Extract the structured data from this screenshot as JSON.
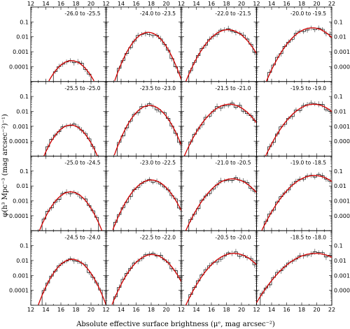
{
  "chart_data": {
    "type": "grid",
    "panel_type": "histogram-with-fit",
    "xlabel": "Absolute effective surface brightness (μᵉ, mag arcsec⁻²)",
    "ylabel": "φ(h³ Mpc⁻³ (mag arcsec⁻²)⁻¹)",
    "xlim": [
      12,
      22
    ],
    "x_ticks": [
      12,
      14,
      16,
      18,
      20,
      22
    ],
    "x_tick_labels": [
      "12",
      "14",
      "16",
      "18",
      "20",
      "22"
    ],
    "y_scale": "log",
    "ylim": [
      1e-05,
      1
    ],
    "y_ticks": [
      0.1,
      0.01,
      0.001,
      0.0001
    ],
    "y_tick_labels": [
      "0.1",
      "0.01",
      "0.001",
      "0.0001"
    ],
    "fit_color": "#d40000",
    "histogram_color": "#000000",
    "panels": [
      {
        "label": "-26.0 to -25.5",
        "fit_mu": 17.4,
        "fit_sigma": 1.2,
        "fit_peak": 0.00025
      },
      {
        "label": "-24.0 to -23.5",
        "fit_mu": 17.6,
        "fit_sigma": 1.15,
        "fit_peak": 0.02
      },
      {
        "label": "-22.0 to -21.5",
        "fit_mu": 18.2,
        "fit_sigma": 1.4,
        "fit_peak": 0.03
      },
      {
        "label": "-20.0 to -19.5",
        "fit_mu": 19.4,
        "fit_sigma": 1.5,
        "fit_peak": 0.04
      },
      {
        "label": "-25.5 to -25.0",
        "fit_mu": 17.3,
        "fit_sigma": 1.15,
        "fit_peak": 0.0012
      },
      {
        "label": "-23.5 to -23.0",
        "fit_mu": 17.8,
        "fit_sigma": 1.2,
        "fit_peak": 0.025
      },
      {
        "label": "-21.5 to -21.0",
        "fit_mu": 18.4,
        "fit_sigma": 1.5,
        "fit_peak": 0.03
      },
      {
        "label": "-19.5 to -19.0",
        "fit_mu": 19.6,
        "fit_sigma": 1.6,
        "fit_peak": 0.03
      },
      {
        "label": "-25.0 to -24.5",
        "fit_mu": 17.3,
        "fit_sigma": 1.2,
        "fit_peak": 0.004
      },
      {
        "label": "-23.0 to -22.5",
        "fit_mu": 18.0,
        "fit_sigma": 1.3,
        "fit_peak": 0.025
      },
      {
        "label": "-21.0 to -20.5",
        "fit_mu": 18.8,
        "fit_sigma": 1.55,
        "fit_peak": 0.03
      },
      {
        "label": "-19.0 to -18.5",
        "fit_mu": 19.7,
        "fit_sigma": 1.7,
        "fit_peak": 0.05
      },
      {
        "label": "-24.5 to -24.0",
        "fit_mu": 17.5,
        "fit_sigma": 1.2,
        "fit_peak": 0.012
      },
      {
        "label": "-22.5 to -22.0",
        "fit_mu": 18.1,
        "fit_sigma": 1.35,
        "fit_peak": 0.025
      },
      {
        "label": "-20.5 to -20.0",
        "fit_mu": 19.0,
        "fit_sigma": 1.6,
        "fit_peak": 0.03
      },
      {
        "label": "-18.5 to -18.0",
        "fit_mu": 19.8,
        "fit_sigma": 2.0,
        "fit_peak": 0.03
      }
    ]
  }
}
